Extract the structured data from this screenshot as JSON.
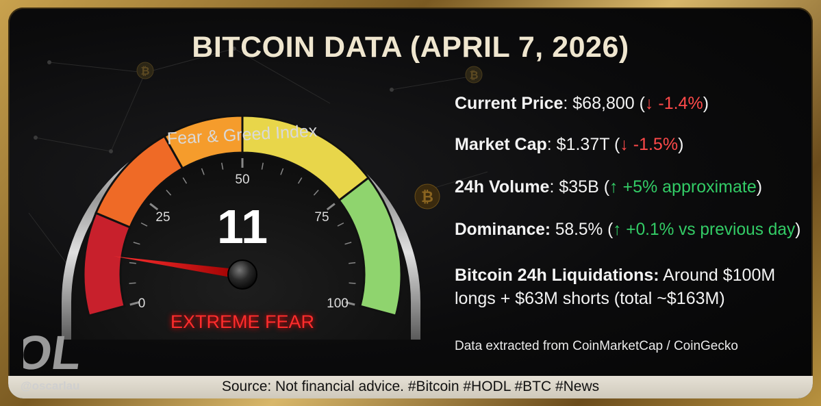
{
  "title": "BITCOIN DATA (APRIL 7, 2026)",
  "gauge": {
    "label": "Fear & Greed Index",
    "value": "11",
    "needle_value": 11,
    "min_label": "0",
    "tick_25": "25",
    "tick_50": "50",
    "tick_75": "75",
    "max_label": "100",
    "sentiment": "EXTREME FEAR",
    "colors": {
      "extreme_fear": "#c8202c",
      "fear": "#ef6a26",
      "neutral_low": "#f59c2c",
      "neutral_high": "#e8d64a",
      "greed": "#8fd46e",
      "sentiment_text": "#ff2d2d"
    }
  },
  "stats": {
    "price": {
      "label": "Current Price",
      "value": ": $68,800 (",
      "arrow": "↓",
      "change": " -1.4%",
      "close": ")"
    },
    "market_cap": {
      "label": "Market Cap",
      "value": ": $1.37T (",
      "arrow": "↓",
      "change": " -1.5%",
      "close": ")"
    },
    "volume": {
      "label": "24h Volume",
      "value": ": $35B (",
      "arrow": "↑",
      "change": " +5% approximate",
      "close": ")"
    },
    "dominance": {
      "label": "Dominance:",
      "value": " 58.5% (",
      "arrow": "↑",
      "change": " +0.1% vs previous day",
      "close": ")"
    },
    "liquidations": {
      "label": "Bitcoin 24h Liquidations:",
      "line1_rest": " Around $100M",
      "line2": "longs + $63M shorts (total ~$163M)"
    },
    "source_note": "Data extracted from CoinMarketCap / CoinGecko"
  },
  "footer": "Source: Not financial advice. #Bitcoin #HODL #BTC #News",
  "branding": {
    "logo_text": "OL",
    "handle": "@oscarlau"
  }
}
